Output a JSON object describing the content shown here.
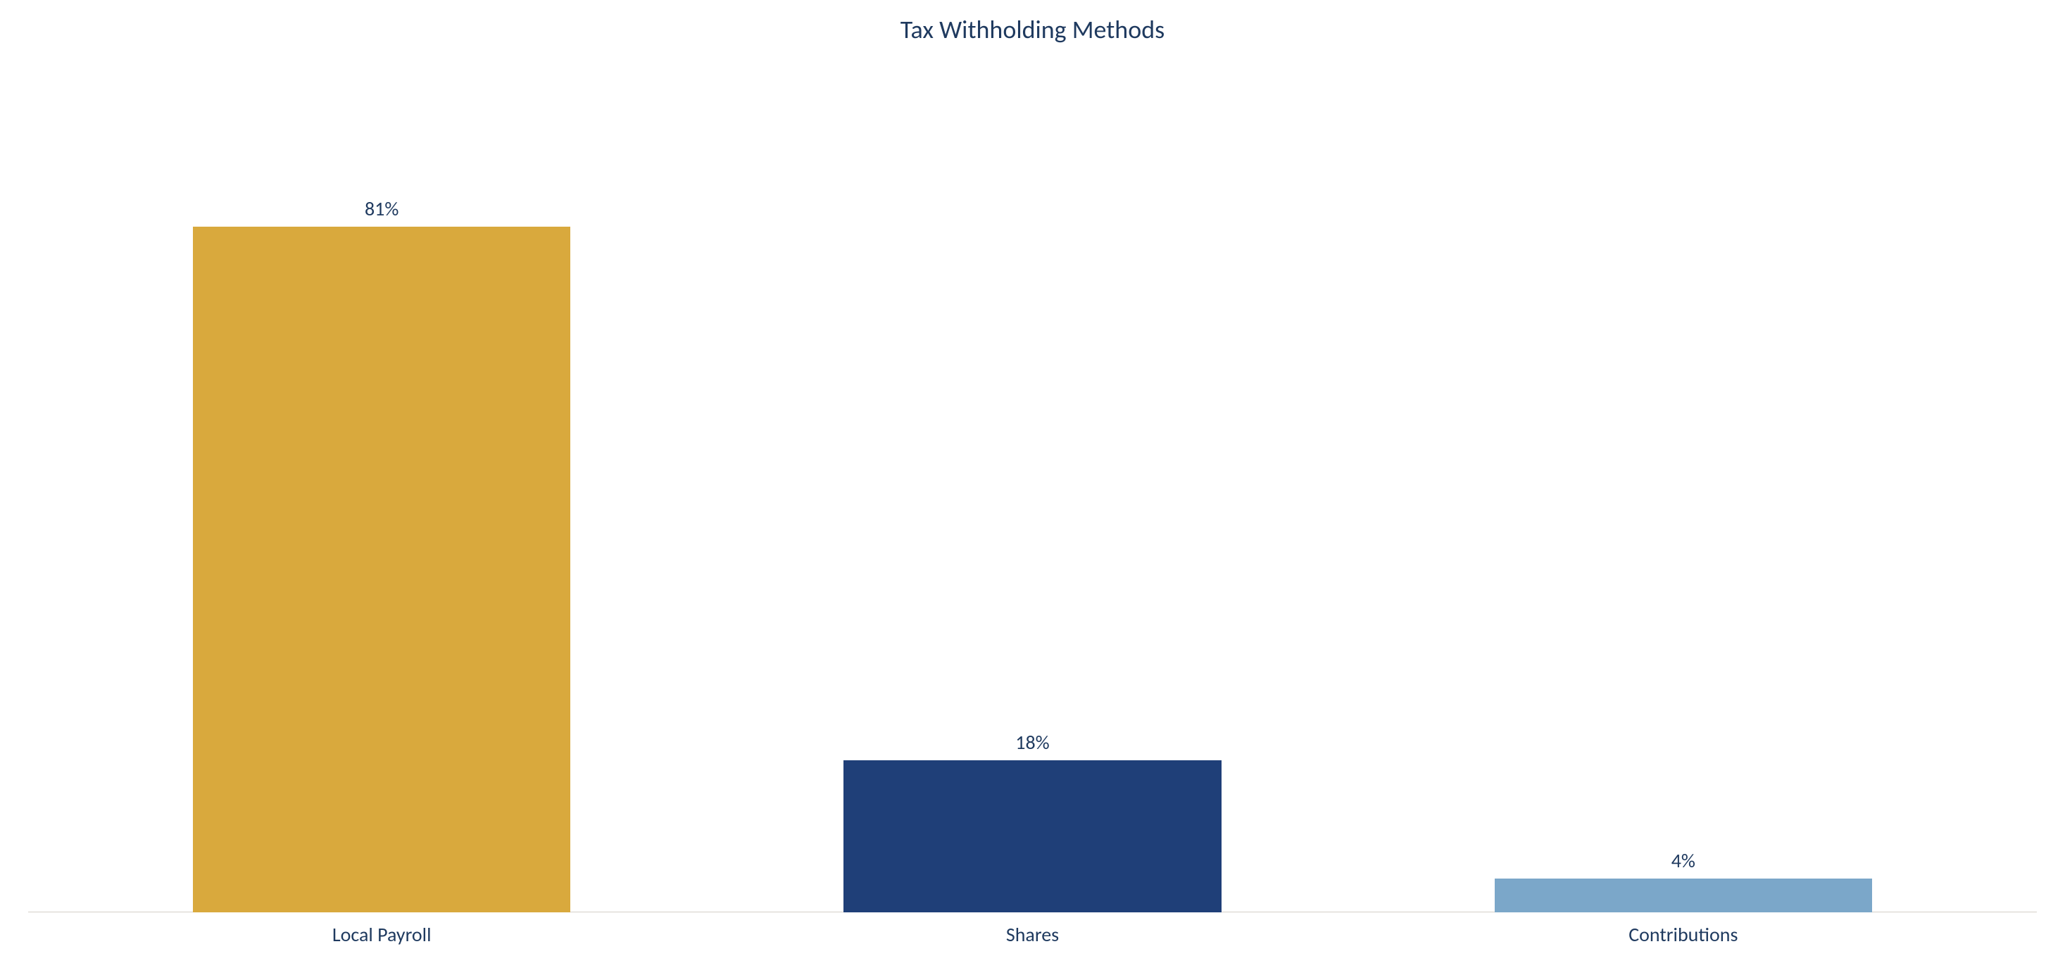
{
  "chart": {
    "type": "bar",
    "title": "Tax Withholding Methods",
    "title_fontsize": 36,
    "title_color": "#1f3a5f",
    "background_color": "#ffffff",
    "axis_line_color": "#d4cfc7",
    "axis_line_width": 1,
    "value_label_fontsize": 28,
    "value_label_color": "#1f3a5f",
    "x_label_fontsize": 28,
    "x_label_color": "#1f3a5f",
    "ylim_max": 100,
    "bar_width_pct": 58,
    "categories": [
      "Local Payroll",
      "Shares",
      "Contributions"
    ],
    "values": [
      81,
      18,
      4
    ],
    "value_labels": [
      "81%",
      "18%",
      "4%"
    ],
    "bar_colors": [
      "#d9a93d",
      "#1f3f78",
      "#7ba7c9"
    ]
  }
}
